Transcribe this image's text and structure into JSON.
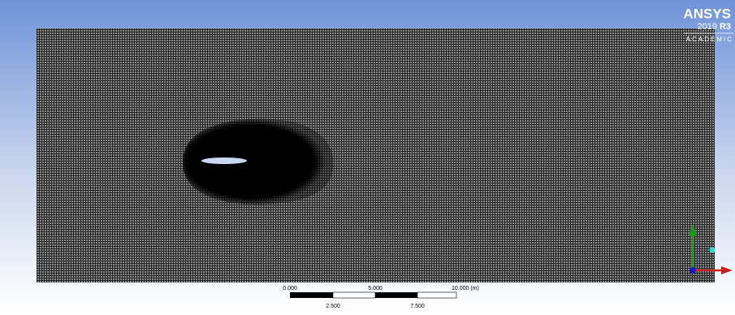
{
  "logo": {
    "brand": "ANSYS",
    "version": "2019",
    "release": "R3",
    "edition": "ACADEMIC"
  },
  "scale_bar": {
    "top_labels": [
      "0.000",
      "5.000",
      "10.000 (m)"
    ],
    "bottom_labels": [
      "2.500",
      "7.500"
    ]
  }
}
